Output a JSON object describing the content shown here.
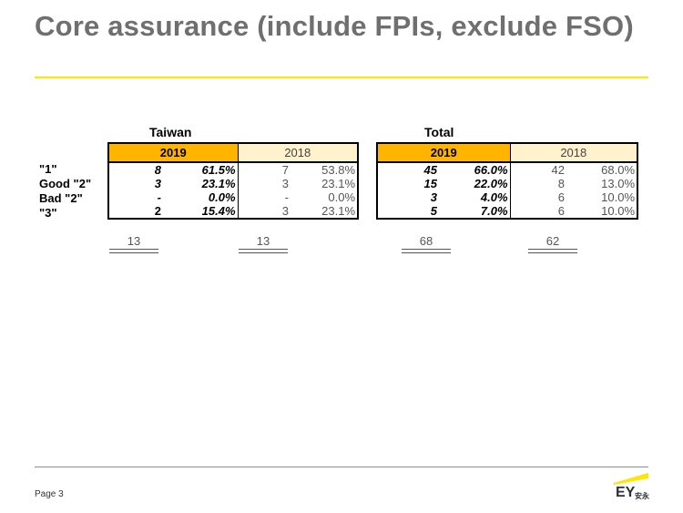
{
  "title": "Core assurance (include FPIs, exclude FSO)",
  "colors": {
    "accent_yellow": "#ffe600",
    "header_current": "#ffb400",
    "header_prior": "#fff2cc"
  },
  "row_labels": [
    "\"1\"",
    "Good \"2\"",
    "Bad \"2\"",
    "\"3\""
  ],
  "tables": [
    {
      "name": "Taiwan",
      "year_current": "2019",
      "year_prior": "2018",
      "rows": [
        {
          "cur_count": "8",
          "cur_pct": "61.5%",
          "prev_count": "7",
          "prev_pct": "53.8%"
        },
        {
          "cur_count": "3",
          "cur_pct": "23.1%",
          "prev_count": "3",
          "prev_pct": "23.1%"
        },
        {
          "cur_count": "-",
          "cur_pct": "0.0%",
          "prev_count": "-",
          "prev_pct": "0.0%"
        },
        {
          "cur_count": "2",
          "cur_pct": "15.4%",
          "prev_count": "3",
          "prev_pct": "23.1%"
        }
      ],
      "total_current": "13",
      "total_prior": "13"
    },
    {
      "name": "Total",
      "year_current": "2019",
      "year_prior": "2018",
      "rows": [
        {
          "cur_count": "45",
          "cur_pct": "66.0%",
          "prev_count": "42",
          "prev_pct": "68.0%"
        },
        {
          "cur_count": "15",
          "cur_pct": "22.0%",
          "prev_count": "8",
          "prev_pct": "13.0%"
        },
        {
          "cur_count": "3",
          "cur_pct": "4.0%",
          "prev_count": "6",
          "prev_pct": "10.0%"
        },
        {
          "cur_count": "5",
          "cur_pct": "7.0%",
          "prev_count": "6",
          "prev_pct": "10.0%"
        }
      ],
      "total_current": "68",
      "total_prior": "62"
    }
  ],
  "footer": {
    "page_label": "Page 3"
  },
  "logo": {
    "text": "EY",
    "subtext": "安永"
  }
}
